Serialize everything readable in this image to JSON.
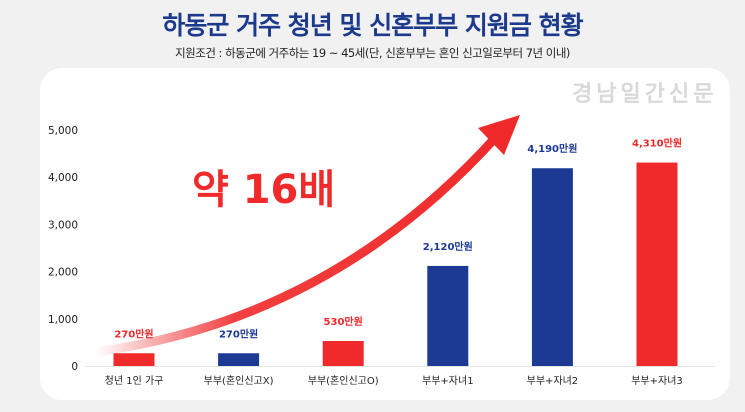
{
  "title": "하동군 거주 청년 및 신혼부부 지원금 현황",
  "subtitle": "지원조건 : 하동군에 거주하는 19 ~ 45세(단, 신혼부부는 혼인 신고일로부터 7년 이내)",
  "annotation": "약 16배",
  "watermark": "경남일간신문",
  "colors": {
    "red": "#f02a2a",
    "blue": "#1c3a94",
    "title": "#1c3a8c"
  },
  "chart_data": {
    "type": "bar",
    "title": "하동군 거주 청년 및 신혼부부 지원금 현황",
    "categories": [
      "청년 1인 가구",
      "부부(혼인신고X)",
      "부부(혼인신고O)",
      "부부+자녀1",
      "부부+자녀2",
      "부부+자녀3"
    ],
    "values": [
      270,
      270,
      530,
      2120,
      4190,
      4310
    ],
    "data_labels": [
      "270만원",
      "270만원",
      "530만원",
      "2,120만원",
      "4,190만원",
      "4,310만원"
    ],
    "bar_colors": [
      "red",
      "blue",
      "red",
      "blue",
      "blue",
      "red"
    ],
    "ylim": [
      0,
      5000
    ],
    "yticks": [
      "0",
      "1,000",
      "2,000",
      "3,000",
      "4,000",
      "5,000"
    ],
    "ytick_values": [
      0,
      1000,
      2000,
      3000,
      4000,
      5000
    ],
    "grid": false,
    "xlabel": "",
    "ylabel": ""
  }
}
